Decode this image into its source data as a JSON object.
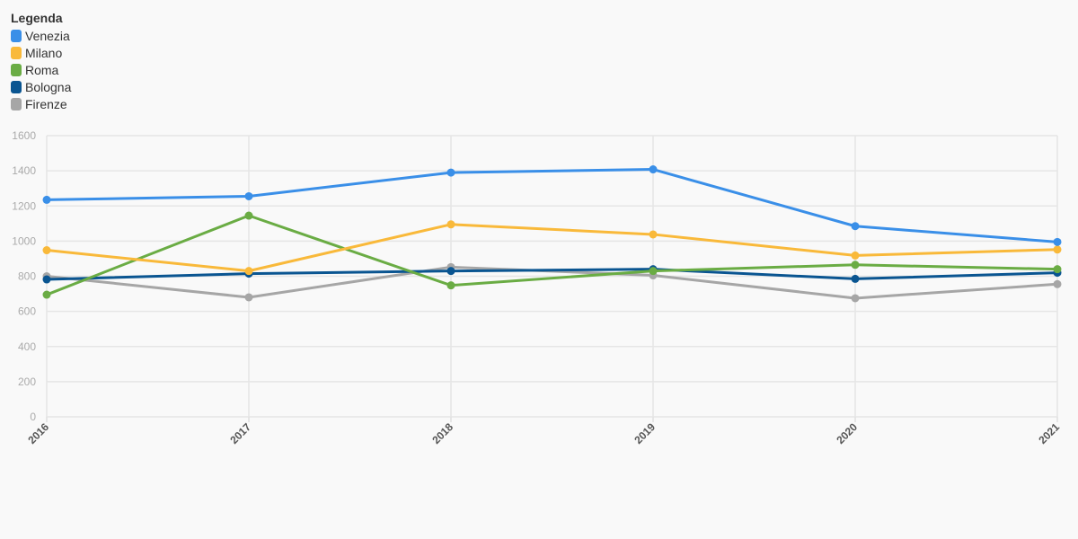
{
  "legend": {
    "title": "Legenda"
  },
  "colors": {
    "Venezia": "#3a8fe8",
    "Milano": "#f9b93a",
    "Roma": "#6aac44",
    "Bologna": "#0a5591",
    "Firenze": "#a6a6a6"
  },
  "chart_data": {
    "type": "line",
    "title": "",
    "xlabel": "",
    "ylabel": "",
    "x": [
      "2016",
      "2017",
      "2018",
      "2019",
      "2020",
      "2021"
    ],
    "ylim": [
      0,
      1600
    ],
    "yticks": [
      0,
      200,
      400,
      600,
      800,
      1000,
      1200,
      1400,
      1600
    ],
    "grid": true,
    "legend_position": "top-left",
    "series": [
      {
        "name": "Venezia",
        "values": [
          1235,
          1255,
          1390,
          1408,
          1085,
          995
        ]
      },
      {
        "name": "Milano",
        "values": [
          948,
          830,
          1095,
          1038,
          918,
          952
        ]
      },
      {
        "name": "Roma",
        "values": [
          695,
          1145,
          748,
          830,
          865,
          840
        ]
      },
      {
        "name": "Bologna",
        "values": [
          782,
          815,
          830,
          840,
          785,
          820
        ]
      },
      {
        "name": "Firenze",
        "values": [
          800,
          680,
          852,
          805,
          675,
          755
        ]
      }
    ]
  }
}
